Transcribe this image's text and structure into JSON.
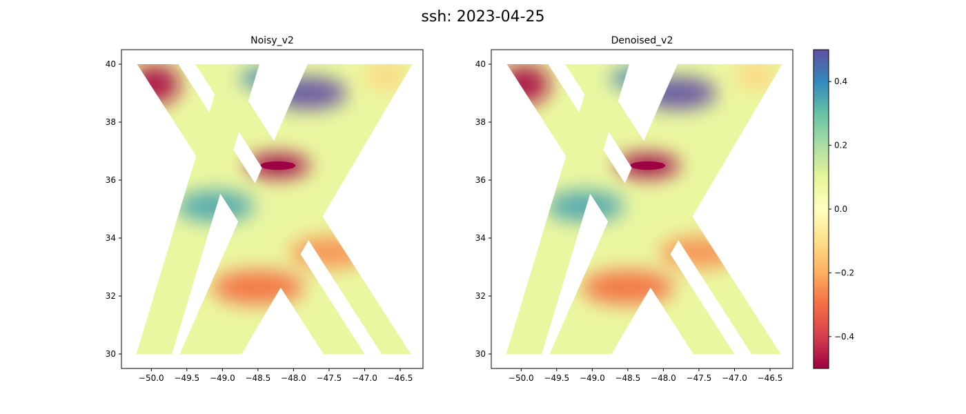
{
  "figure": {
    "suptitle": "ssh: 2023-04-25"
  },
  "chart_data": [
    {
      "type": "heatmap",
      "title": "Noisy_v2",
      "xlabel": "",
      "ylabel": "",
      "xlim": [
        -50.42,
        -46.18
      ],
      "ylim": [
        29.5,
        40.5
      ],
      "xticks": [
        -50.0,
        -49.5,
        -49.0,
        -48.5,
        -48.0,
        -47.5,
        -47.0,
        -46.5
      ],
      "xtick_labels": [
        "−50.0",
        "−49.5",
        "−49.0",
        "−48.5",
        "−48.0",
        "−47.5",
        "−47.0",
        "−46.5"
      ],
      "yticks": [
        30,
        32,
        34,
        36,
        38,
        40
      ],
      "ytick_labels": [
        "30",
        "32",
        "34",
        "36",
        "38",
        "40"
      ],
      "grid": false,
      "swaths": [
        {
          "name": "",
          "corners": [
            [
              -50.2,
              40.0
            ],
            [
              -49.62,
              40.0
            ],
            [
              -47.0,
              30.0
            ],
            [
              -47.58,
              30.0
            ]
          ]
        },
        {
          "name": "",
          "corners": [
            [
              -49.38,
              40.0
            ],
            [
              -48.97,
              40.0
            ],
            [
              -46.35,
              30.0
            ],
            [
              -46.76,
              30.0
            ]
          ]
        },
        {
          "name": "",
          "corners": [
            [
              -48.48,
              40.0
            ],
            [
              -48.98,
              40.0
            ],
            [
              -50.21,
              30.0
            ],
            [
              -49.71,
              30.0
            ]
          ]
        },
        {
          "name": "",
          "corners": [
            [
              -47.8,
              40.0
            ],
            [
              -46.33,
              40.0
            ],
            [
              -48.73,
              30.0
            ],
            [
              -49.6,
              30.0
            ]
          ]
        }
      ],
      "field_features": [
        {
          "lon": -48.22,
          "lat": 36.5,
          "value": -0.5,
          "rx": 0.45,
          "ry": 0.42
        },
        {
          "lon": -49.95,
          "lat": 39.3,
          "value": -0.48,
          "rx": 0.35,
          "ry": 0.7
        },
        {
          "lon": -47.8,
          "lat": 39.0,
          "value": 0.5,
          "rx": 0.55,
          "ry": 0.55
        },
        {
          "lon": -48.4,
          "lat": 39.5,
          "value": 0.42,
          "rx": 0.35,
          "ry": 0.35
        },
        {
          "lon": -49.1,
          "lat": 35.1,
          "value": 0.35,
          "rx": 0.55,
          "ry": 0.55
        },
        {
          "lon": -48.5,
          "lat": 32.3,
          "value": -0.3,
          "rx": 0.65,
          "ry": 0.6
        },
        {
          "lon": -47.5,
          "lat": 33.5,
          "value": -0.25,
          "rx": 0.55,
          "ry": 0.55
        },
        {
          "lon": -46.7,
          "lat": 39.6,
          "value": -0.12,
          "rx": 0.3,
          "ry": 0.5
        }
      ],
      "background_value": 0.08
    },
    {
      "type": "heatmap",
      "title": "Denoised_v2",
      "xlabel": "",
      "ylabel": "",
      "xlim": [
        -50.42,
        -46.18
      ],
      "ylim": [
        29.5,
        40.5
      ],
      "xticks": [
        -50.0,
        -49.5,
        -49.0,
        -48.5,
        -48.0,
        -47.5,
        -47.0,
        -46.5
      ],
      "xtick_labels": [
        "−50.0",
        "−49.5",
        "−49.0",
        "−48.5",
        "−48.0",
        "−47.5",
        "−47.0",
        "−46.5"
      ],
      "yticks": [
        30,
        32,
        34,
        36,
        38,
        40
      ],
      "ytick_labels": [
        "30",
        "32",
        "34",
        "36",
        "38",
        "40"
      ],
      "grid": false,
      "swaths": [
        {
          "name": "",
          "corners": [
            [
              -50.2,
              40.0
            ],
            [
              -49.62,
              40.0
            ],
            [
              -47.0,
              30.0
            ],
            [
              -47.58,
              30.0
            ]
          ]
        },
        {
          "name": "",
          "corners": [
            [
              -49.38,
              40.0
            ],
            [
              -48.97,
              40.0
            ],
            [
              -46.35,
              30.0
            ],
            [
              -46.76,
              30.0
            ]
          ]
        },
        {
          "name": "",
          "corners": [
            [
              -48.48,
              40.0
            ],
            [
              -48.98,
              40.0
            ],
            [
              -50.21,
              30.0
            ],
            [
              -49.71,
              30.0
            ]
          ]
        },
        {
          "name": "",
          "corners": [
            [
              -47.8,
              40.0
            ],
            [
              -46.33,
              40.0
            ],
            [
              -48.73,
              30.0
            ],
            [
              -49.6,
              30.0
            ]
          ]
        }
      ],
      "field_features": [
        {
          "lon": -48.22,
          "lat": 36.5,
          "value": -0.5,
          "rx": 0.45,
          "ry": 0.42
        },
        {
          "lon": -49.95,
          "lat": 39.3,
          "value": -0.48,
          "rx": 0.35,
          "ry": 0.7
        },
        {
          "lon": -47.8,
          "lat": 39.0,
          "value": 0.5,
          "rx": 0.55,
          "ry": 0.55
        },
        {
          "lon": -48.4,
          "lat": 39.5,
          "value": 0.42,
          "rx": 0.35,
          "ry": 0.35
        },
        {
          "lon": -49.1,
          "lat": 35.1,
          "value": 0.35,
          "rx": 0.55,
          "ry": 0.55
        },
        {
          "lon": -48.5,
          "lat": 32.3,
          "value": -0.3,
          "rx": 0.65,
          "ry": 0.6
        },
        {
          "lon": -47.5,
          "lat": 33.5,
          "value": -0.25,
          "rx": 0.55,
          "ry": 0.55
        },
        {
          "lon": -46.7,
          "lat": 39.6,
          "value": -0.12,
          "rx": 0.3,
          "ry": 0.5
        }
      ],
      "background_value": 0.08
    }
  ],
  "colorbar": {
    "colormap": "Spectral",
    "vmin": -0.5,
    "vmax": 0.5,
    "ticks": [
      -0.4,
      -0.2,
      0.0,
      0.2,
      0.4
    ],
    "tick_labels": [
      "−0.4",
      "−0.2",
      "0.0",
      "0.2",
      "0.4"
    ],
    "stops": [
      "#9e0142",
      "#d53e4f",
      "#f46d43",
      "#fdae61",
      "#fee08b",
      "#ffffbf",
      "#e6f598",
      "#abdda4",
      "#66c2a5",
      "#3288bd",
      "#5e4fa2"
    ]
  }
}
